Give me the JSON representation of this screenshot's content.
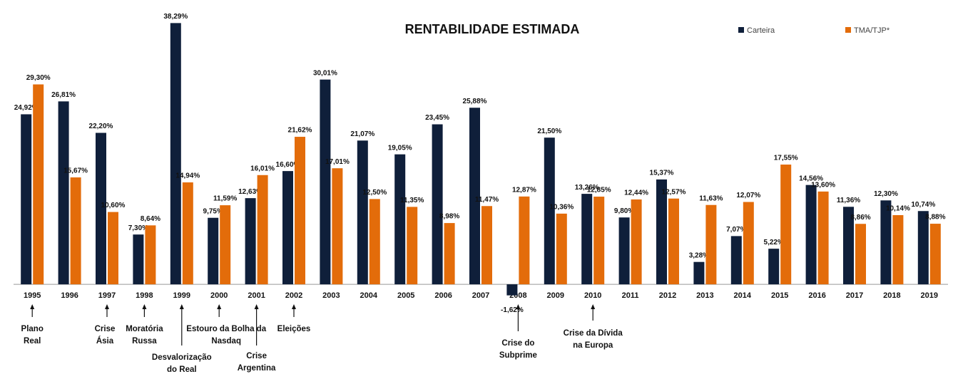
{
  "chart_data": {
    "type": "bar",
    "title": "RENTABILIDADE ESTIMADA",
    "categories": [
      "1995",
      "1996",
      "1997",
      "1998",
      "1999",
      "2000",
      "2001",
      "2002",
      "2003",
      "2004",
      "2005",
      "2006",
      "2007",
      "2008",
      "2009",
      "2010",
      "2011",
      "2012",
      "2013",
      "2014",
      "2015",
      "2016",
      "2017",
      "2018",
      "2019"
    ],
    "series": [
      {
        "name": "Carteira",
        "color": "#0f1f3a",
        "values": [
          24.92,
          26.81,
          22.2,
          7.3,
          38.29,
          9.75,
          12.63,
          16.6,
          30.01,
          21.07,
          19.05,
          23.45,
          25.88,
          -1.62,
          21.5,
          13.26,
          9.8,
          15.37,
          3.28,
          7.07,
          5.22,
          14.56,
          11.36,
          12.3,
          10.74
        ],
        "value_labels": [
          "24,92%",
          "26,81%",
          "22,20%",
          "7,30%",
          "38,29%",
          "9,75%",
          "12,63%",
          "16,60%",
          "30,01%",
          "21,07%",
          "19,05%",
          "23,45%",
          "25,88%",
          "-1,62%",
          "21,50%",
          "13,26%",
          "9,80%",
          "15,37%",
          "3,28%",
          "7,07%",
          "5,22%",
          "14,56%",
          "11,36%",
          "12,30%",
          "10,74%"
        ]
      },
      {
        "name": "TMA/TJP*",
        "color": "#e36c0a",
        "values": [
          29.3,
          15.67,
          10.6,
          8.64,
          14.94,
          11.59,
          16.01,
          21.62,
          17.01,
          12.5,
          11.35,
          8.98,
          11.47,
          12.87,
          10.36,
          12.85,
          12.44,
          12.57,
          11.63,
          12.07,
          17.55,
          13.6,
          8.86,
          10.14,
          8.88
        ],
        "value_labels": [
          "29,30%",
          "15,67%",
          "10,60%",
          "8,64%",
          "14,94%",
          "11,59%",
          "16,01%",
          "21,62%",
          "17,01%",
          "12,50%",
          "11,35%",
          "8,98%",
          "11,47%",
          "12,87%",
          "10,36%",
          "12,85%",
          "12,44%",
          "12,57%",
          "11,63%",
          "12,07%",
          "17,55%",
          "13,60%",
          "8,86%",
          "10,14%",
          "8,88%"
        ]
      }
    ],
    "ylim": [
      -5,
      40
    ],
    "annotations": [
      {
        "x": "1995",
        "lines": [
          "Plano",
          "Real"
        ]
      },
      {
        "x": "1997",
        "lines": [
          "Crise",
          "Ásia"
        ]
      },
      {
        "x": "1998",
        "lines": [
          "Moratória",
          "Russa"
        ]
      },
      {
        "x": "1999",
        "lines": [
          "Desvalorização",
          "do Real"
        ]
      },
      {
        "x": "2000",
        "lines": [
          "Estouro da Bolha da",
          "Nasdaq"
        ]
      },
      {
        "x": "2001",
        "lines": [
          "Crise",
          "Argentina"
        ]
      },
      {
        "x": "2002",
        "lines": [
          "Eleições"
        ]
      },
      {
        "x": "2008",
        "lines": [
          "Crise do",
          "Subprime"
        ]
      },
      {
        "x": "2010",
        "lines": [
          "Crise da Dívida",
          "na  Europa"
        ]
      }
    ]
  }
}
